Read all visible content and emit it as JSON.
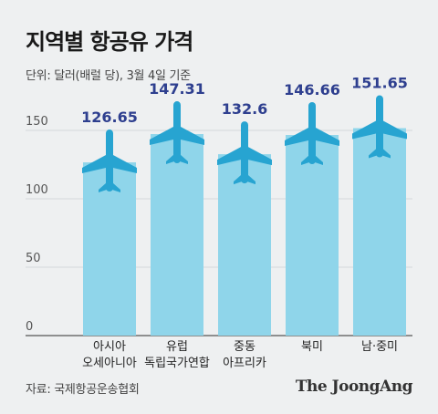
{
  "title": "지역별 항공유 가격",
  "subtitle": "단위: 달러(배럴 당), 3월 4일 기준",
  "source": "자료: 국제항공운송협회",
  "brand": "The JoongAng",
  "icons": {
    "mark": "airplane-icon"
  },
  "colors": {
    "bar": "#8fd5ea",
    "plane": "#27a4d1",
    "value_label": "#2e3f8f",
    "axis": "#555555",
    "grid": "#d4d8db"
  },
  "chart_data": {
    "type": "bar",
    "title": "지역별 항공유 가격",
    "subtitle": "단위: 달러(배럴 당), 3월 4일 기준",
    "categories": [
      "아시아\n오세아니아",
      "유럽\n독립국가연합",
      "중동\n아프리카",
      "북미",
      "남·중미"
    ],
    "values": [
      126.65,
      147.31,
      132.6,
      146.66,
      151.65
    ],
    "value_labels": [
      "126.65",
      "147.31",
      "132.6",
      "146.66",
      "151.65"
    ],
    "ylim": [
      0,
      160
    ],
    "yticks": [
      0,
      50,
      100,
      150
    ],
    "grid": true,
    "xlabel": "",
    "ylabel": ""
  }
}
